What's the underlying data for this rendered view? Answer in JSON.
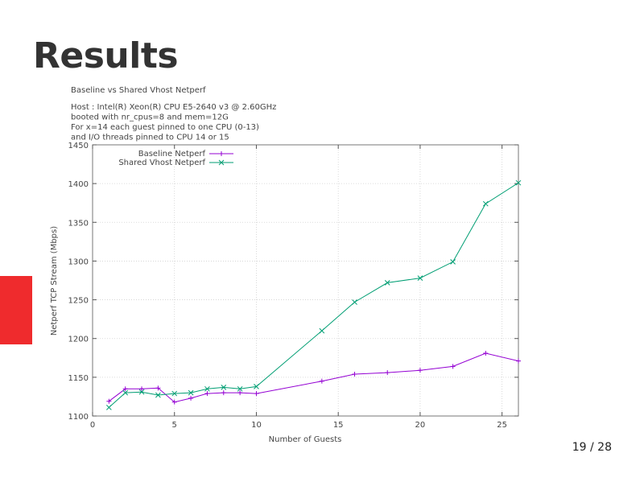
{
  "slide": {
    "title": "Results",
    "page_number": "19 / 28",
    "accent_color": "#ef2b2d"
  },
  "chart_data": {
    "type": "line",
    "title": "Baseline vs Shared Vhost Netperf",
    "subtitle_lines": [
      "Host : Intel(R) Xeon(R) CPU E5-2640 v3 @ 2.60GHz",
      " booted with nr_cpus=8 and mem=12G",
      " For x=14 each guest pinned to one CPU (0-13)",
      " and I/O threads pinned to CPU 14 or 15"
    ],
    "xlabel": "Number of Guests",
    "ylabel": "Netperf TCP Stream (Mbps)",
    "xlim": [
      0,
      26
    ],
    "ylim": [
      1100,
      1450
    ],
    "xticks": [
      0,
      5,
      10,
      15,
      20,
      25
    ],
    "yticks": [
      1100,
      1150,
      1200,
      1250,
      1300,
      1350,
      1400,
      1450
    ],
    "grid": true,
    "legend_position": "top-left-inside",
    "series": [
      {
        "name": "Baseline Netperf",
        "color": "#9400d3",
        "marker": "+",
        "x": [
          1,
          2,
          3,
          4,
          5,
          6,
          7,
          8,
          9,
          10,
          14,
          16,
          18,
          20,
          22,
          24,
          26
        ],
        "values": [
          1119,
          1135,
          1135,
          1136,
          1118,
          1123,
          1129,
          1130,
          1130,
          1129,
          1145,
          1154,
          1156,
          1159,
          1164,
          1181,
          1171
        ]
      },
      {
        "name": "Shared Vhost Netperf",
        "color": "#009e73",
        "marker": "x",
        "x": [
          1,
          2,
          3,
          4,
          5,
          6,
          7,
          8,
          9,
          10,
          14,
          16,
          18,
          20,
          22,
          24,
          26
        ],
        "values": [
          1111,
          1130,
          1131,
          1127,
          1129,
          1130,
          1135,
          1137,
          1135,
          1138,
          1210,
          1247,
          1272,
          1278,
          1299,
          1374,
          1401
        ]
      }
    ]
  }
}
